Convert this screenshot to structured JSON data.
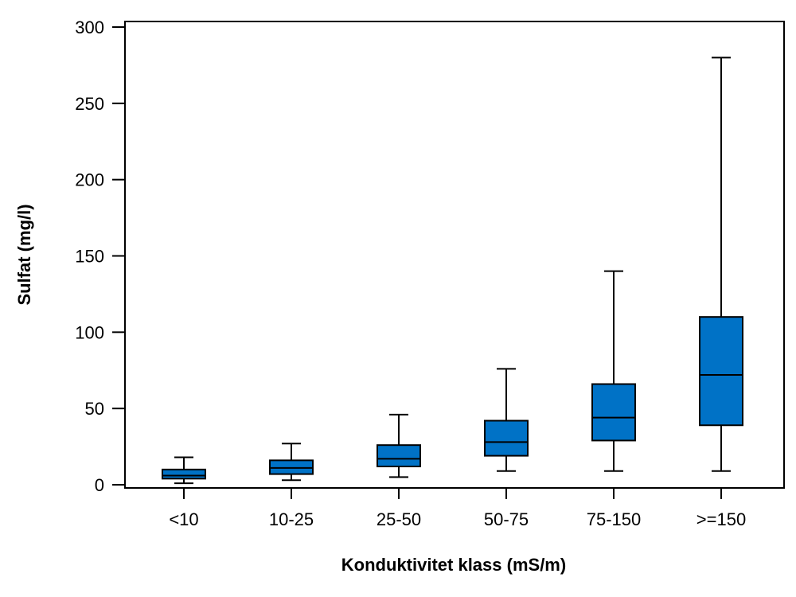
{
  "chart_data": {
    "type": "boxplot",
    "xlabel": "Konduktivitet klass (mS/m)",
    "ylabel": "Sulfat (mg/l)",
    "ylim": [
      0,
      300
    ],
    "yticks": [
      0,
      50,
      100,
      150,
      200,
      250,
      300
    ],
    "categories": [
      "<10",
      "10-25",
      "25-50",
      "50-75",
      "75-150",
      ">=150"
    ],
    "boxes": [
      {
        "min": 1,
        "q1": 4,
        "median": 6,
        "q3": 10,
        "max": 18
      },
      {
        "min": 3,
        "q1": 7,
        "median": 11,
        "q3": 16,
        "max": 27
      },
      {
        "min": 5,
        "q1": 12,
        "median": 17,
        "q3": 26,
        "max": 46
      },
      {
        "min": 9,
        "q1": 19,
        "median": 28,
        "q3": 42,
        "max": 76
      },
      {
        "min": 9,
        "q1": 29,
        "median": 44,
        "q3": 66,
        "max": 140
      },
      {
        "min": 9,
        "q1": 39,
        "median": 72,
        "q3": 110,
        "max": 280
      }
    ],
    "box_color": "#0072c6",
    "grid": false,
    "legend": "none"
  }
}
